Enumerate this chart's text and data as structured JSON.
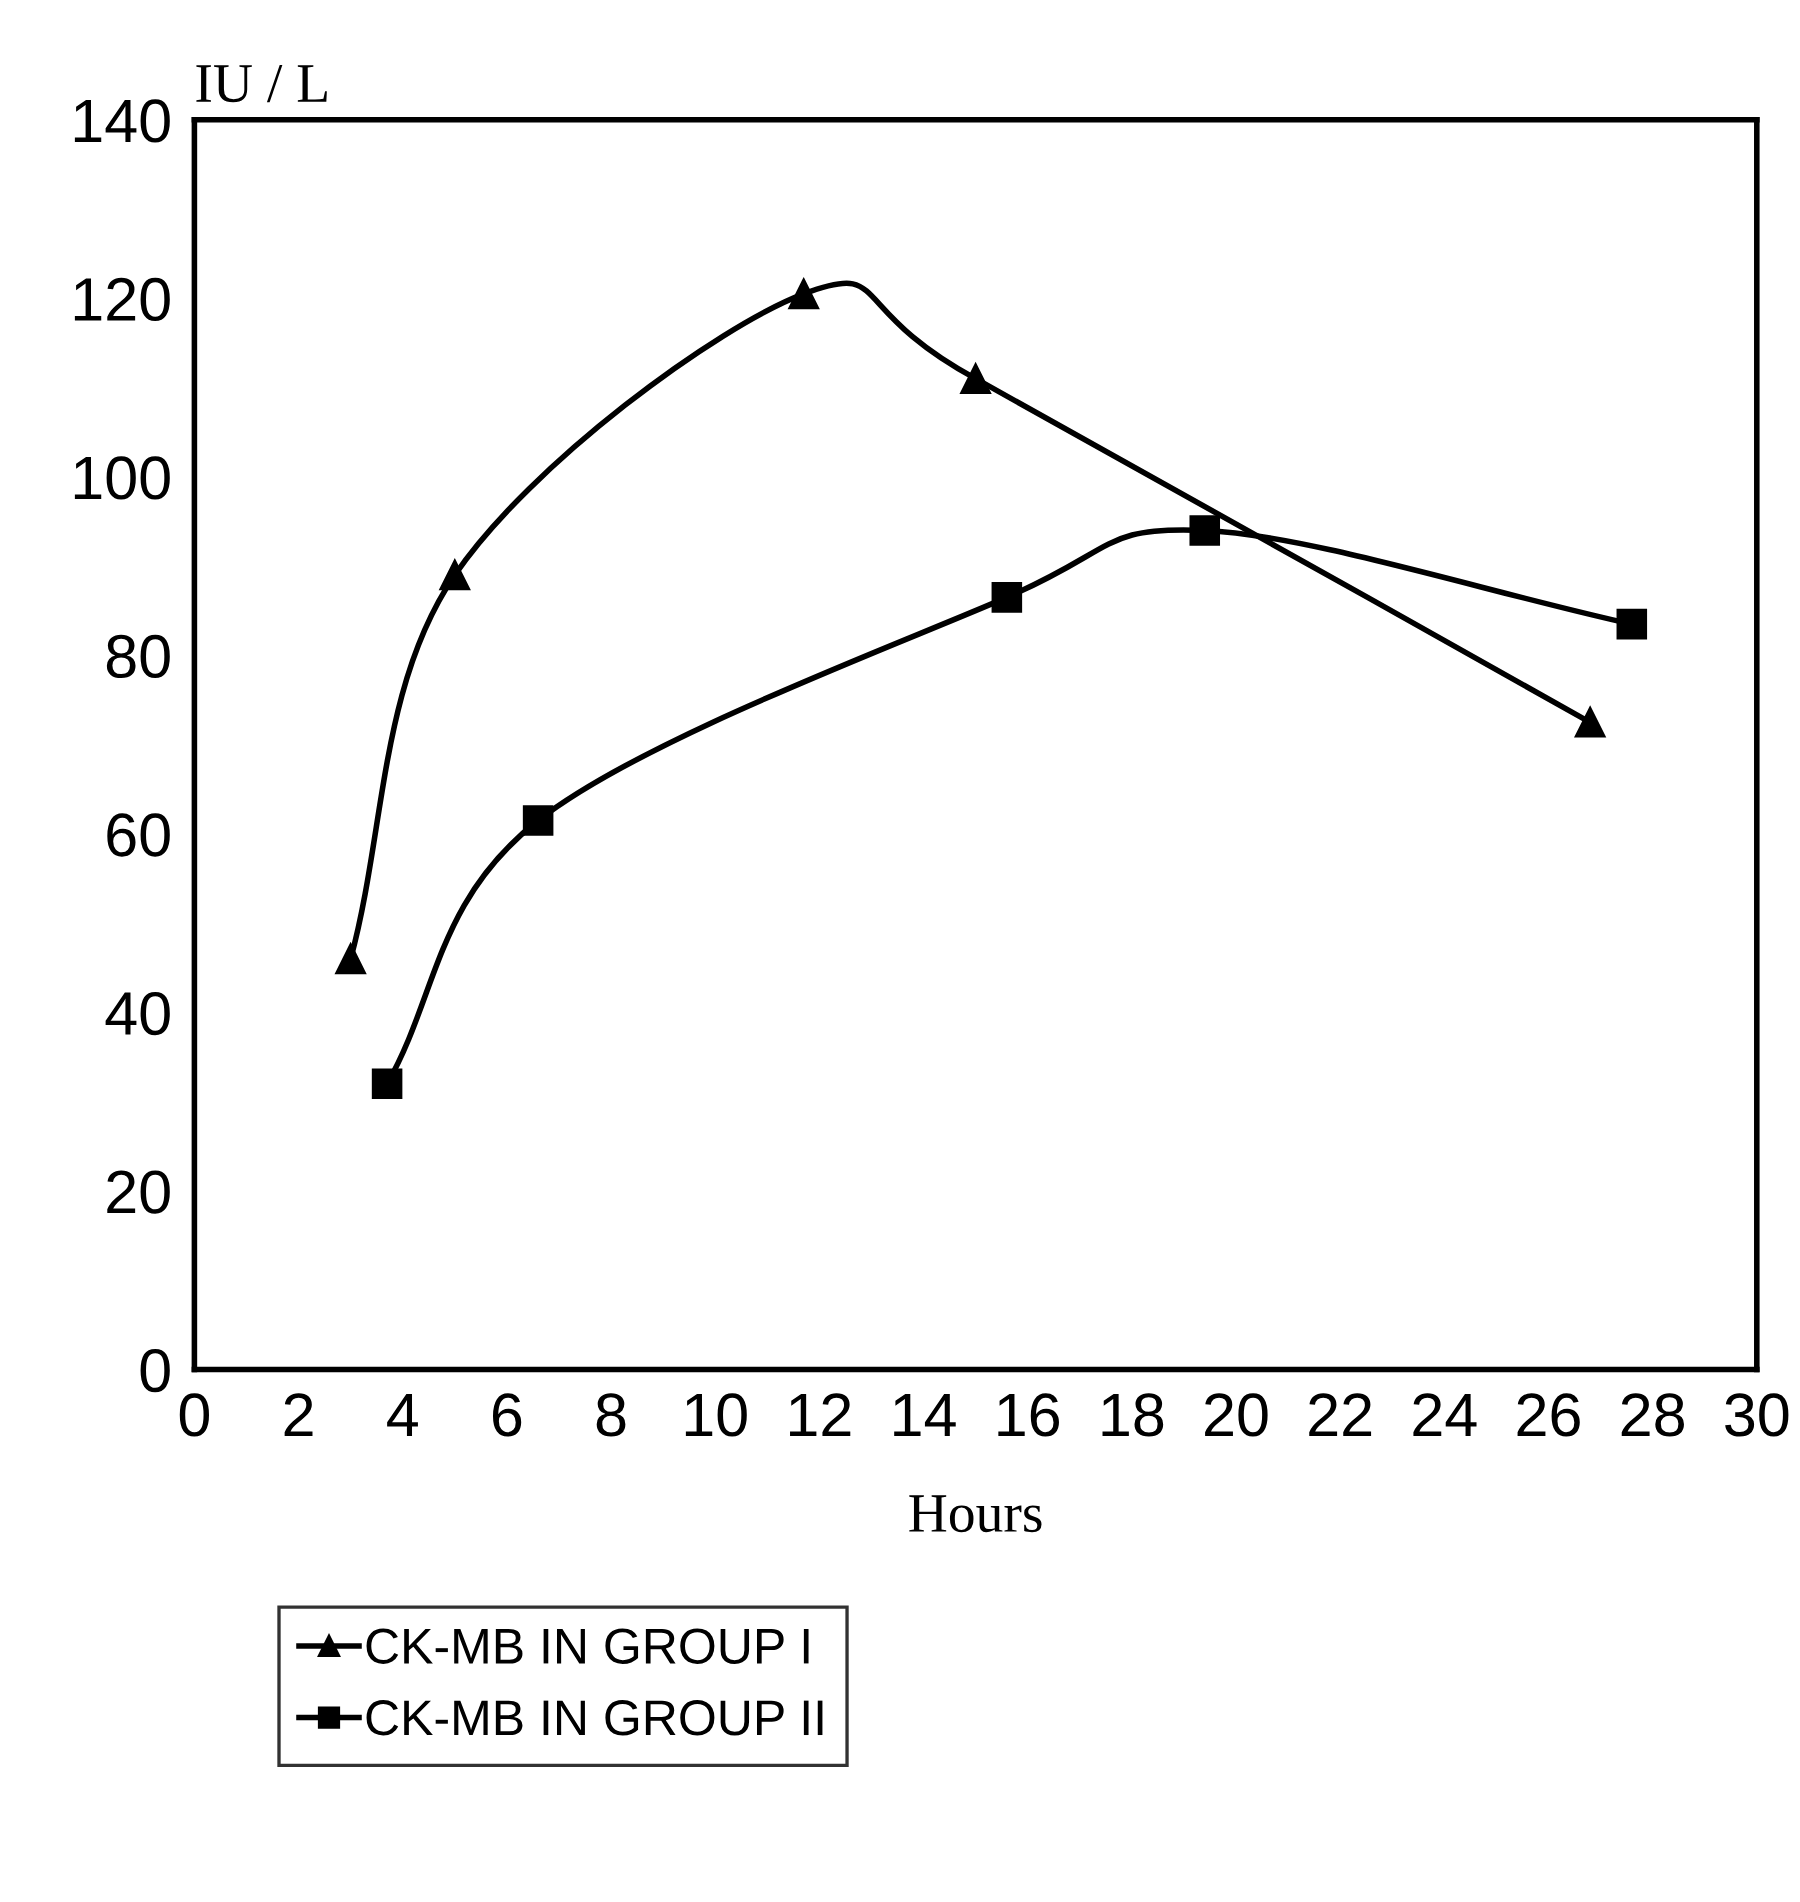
{
  "chart_data": {
    "type": "line",
    "xlabel": "Hours",
    "ylabel": "IU / L",
    "xlim": [
      0,
      30
    ],
    "xticks": [
      0,
      2,
      4,
      6,
      8,
      10,
      12,
      14,
      16,
      18,
      20,
      22,
      24,
      26,
      28,
      30
    ],
    "ylim": [
      0,
      140
    ],
    "yticks": [
      0,
      20,
      40,
      60,
      80,
      100,
      120,
      140
    ],
    "grid": false,
    "legend": "bottom",
    "line_style": "solid",
    "series": [
      {
        "name": "CK-MB IN GROUP I",
        "color": "#000000",
        "marker": "triangle",
        "x": [
          3,
          5,
          11.7,
          15,
          26.8
        ],
        "values": [
          46,
          89,
          120.5,
          111,
          72.5
        ]
      },
      {
        "name": "CK-MB IN GROUP II",
        "color": "#000000",
        "marker": "square",
        "x": [
          3.7,
          6.6,
          15.6,
          19.4,
          27.6
        ],
        "values": [
          32,
          61.5,
          86.5,
          94,
          83.5
        ]
      }
    ]
  }
}
